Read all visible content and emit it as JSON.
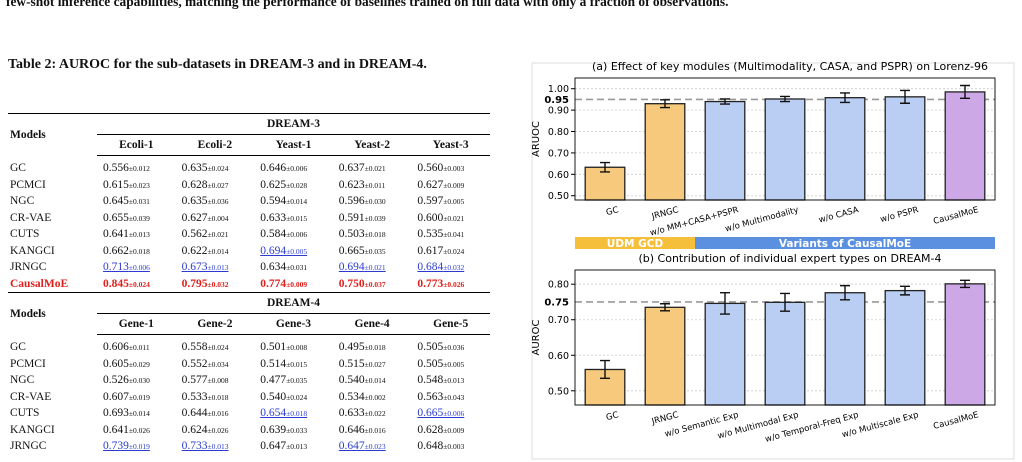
{
  "header_text": "few-shot inference capabilities, matching the performance of baselines trained on full data with only a fraction of observations.",
  "table": {
    "caption": "Table 2: AUROC for the sub-datasets in DREAM-3 and in DREAM-4.",
    "models_label": "Models",
    "sections": [
      {
        "title": "DREAM-3",
        "columns": [
          "Ecoli-1",
          "Ecoli-2",
          "Yeast-1",
          "Yeast-2",
          "Yeast-3"
        ],
        "rows": [
          {
            "model": "GC",
            "cells": [
              {
                "value": "0.556",
                "std": "±0.012"
              },
              {
                "value": "0.635",
                "std": "±0.024"
              },
              {
                "value": "0.646",
                "std": "±0.006"
              },
              {
                "value": "0.637",
                "std": "±0.021"
              },
              {
                "value": "0.560",
                "std": "±0.003"
              }
            ]
          },
          {
            "model": "PCMCI",
            "cells": [
              {
                "value": "0.615",
                "std": "±0.023"
              },
              {
                "value": "0.628",
                "std": "±0.027"
              },
              {
                "value": "0.625",
                "std": "±0.028"
              },
              {
                "value": "0.623",
                "std": "±0.011"
              },
              {
                "value": "0.627",
                "std": "±0.009"
              }
            ]
          },
          {
            "model": "NGC",
            "cells": [
              {
                "value": "0.645",
                "std": "±0.031"
              },
              {
                "value": "0.635",
                "std": "±0.036"
              },
              {
                "value": "0.594",
                "std": "±0.014"
              },
              {
                "value": "0.596",
                "std": "±0.030"
              },
              {
                "value": "0.597",
                "std": "±0.005"
              }
            ]
          },
          {
            "model": "CR-VAE",
            "cells": [
              {
                "value": "0.655",
                "std": "±0.039"
              },
              {
                "value": "0.627",
                "std": "±0.004"
              },
              {
                "value": "0.633",
                "std": "±0.015"
              },
              {
                "value": "0.591",
                "std": "±0.039"
              },
              {
                "value": "0.600",
                "std": "±0.021"
              }
            ]
          },
          {
            "model": "CUTS",
            "cells": [
              {
                "value": "0.641",
                "std": "±0.013"
              },
              {
                "value": "0.562",
                "std": "±0.021"
              },
              {
                "value": "0.584",
                "std": "±0.006"
              },
              {
                "value": "0.503",
                "std": "±0.018"
              },
              {
                "value": "0.535",
                "std": "±0.041"
              }
            ]
          },
          {
            "model": "KANGCI",
            "cells": [
              {
                "value": "0.662",
                "std": "±0.018"
              },
              {
                "value": "0.622",
                "std": "±0.014"
              },
              {
                "value": "0.694",
                "std": "±0.005",
                "color": "#2b3bd0",
                "underline": true
              },
              {
                "value": "0.665",
                "std": "±0.035"
              },
              {
                "value": "0.617",
                "std": "±0.024"
              }
            ]
          },
          {
            "model": "JRNGC",
            "cells": [
              {
                "value": "0.713",
                "std": "±0.006",
                "color": "#2b3bd0",
                "underline": true
              },
              {
                "value": "0.673",
                "std": "±0.013",
                "color": "#2b3bd0",
                "underline": true
              },
              {
                "value": "0.634",
                "std": "±0.031"
              },
              {
                "value": "0.694",
                "std": "±0.021",
                "color": "#2b3bd0",
                "underline": true
              },
              {
                "value": "0.684",
                "std": "±0.032",
                "color": "#2b3bd0",
                "underline": true
              }
            ]
          },
          {
            "model": "CausalMoE",
            "color": "#e0201c",
            "bold": true,
            "cells": [
              {
                "value": "0.845",
                "std": "±0.024",
                "color": "#e0201c",
                "bold": true
              },
              {
                "value": "0.795",
                "std": "±0.032",
                "color": "#e0201c",
                "bold": true
              },
              {
                "value": "0.774",
                "std": "±0.009",
                "color": "#e0201c",
                "bold": true
              },
              {
                "value": "0.750",
                "std": "±0.037",
                "color": "#e0201c",
                "bold": true
              },
              {
                "value": "0.773",
                "std": "±0.026",
                "color": "#e0201c",
                "bold": true
              }
            ]
          }
        ]
      },
      {
        "title": "DREAM-4",
        "columns": [
          "Gene-1",
          "Gene-2",
          "Gene-3",
          "Gene-4",
          "Gene-5"
        ],
        "rows": [
          {
            "model": "GC",
            "cells": [
              {
                "value": "0.606",
                "std": "±0.011"
              },
              {
                "value": "0.558",
                "std": "±0.024"
              },
              {
                "value": "0.501",
                "std": "±0.008"
              },
              {
                "value": "0.495",
                "std": "±0.018"
              },
              {
                "value": "0.505",
                "std": "±0.036"
              }
            ]
          },
          {
            "model": "PCMCI",
            "cells": [
              {
                "value": "0.605",
                "std": "±0.029"
              },
              {
                "value": "0.552",
                "std": "±0.034"
              },
              {
                "value": "0.514",
                "std": "±0.015"
              },
              {
                "value": "0.515",
                "std": "±0.027"
              },
              {
                "value": "0.505",
                "std": "±0.005"
              }
            ]
          },
          {
            "model": "NGC",
            "cells": [
              {
                "value": "0.526",
                "std": "±0.030"
              },
              {
                "value": "0.577",
                "std": "±0.008"
              },
              {
                "value": "0.477",
                "std": "±0.035"
              },
              {
                "value": "0.540",
                "std": "±0.014"
              },
              {
                "value": "0.548",
                "std": "±0.013"
              }
            ]
          },
          {
            "model": "CR-VAE",
            "cells": [
              {
                "value": "0.607",
                "std": "±0.019"
              },
              {
                "value": "0.533",
                "std": "±0.018"
              },
              {
                "value": "0.540",
                "std": "±0.024"
              },
              {
                "value": "0.534",
                "std": "±0.002"
              },
              {
                "value": "0.563",
                "std": "±0.043"
              }
            ]
          },
          {
            "model": "CUTS",
            "cells": [
              {
                "value": "0.693",
                "std": "±0.014"
              },
              {
                "value": "0.644",
                "std": "±0.016"
              },
              {
                "value": "0.654",
                "std": "±0.018",
                "color": "#2b3bd0",
                "underline": true
              },
              {
                "value": "0.633",
                "std": "±0.022"
              },
              {
                "value": "0.665",
                "std": "±0.006",
                "color": "#2b3bd0",
                "underline": true
              }
            ]
          },
          {
            "model": "KANGCI",
            "cells": [
              {
                "value": "0.641",
                "std": "±0.026"
              },
              {
                "value": "0.624",
                "std": "±0.026"
              },
              {
                "value": "0.639",
                "std": "±0.033"
              },
              {
                "value": "0.646",
                "std": "±0.016"
              },
              {
                "value": "0.628",
                "std": "±0.009"
              }
            ]
          },
          {
            "model": "JRNGC",
            "cells": [
              {
                "value": "0.739",
                "std": "±0.019",
                "color": "#2b3bd0",
                "underline": true
              },
              {
                "value": "0.733",
                "std": "±0.013",
                "color": "#2b3bd0",
                "underline": true
              },
              {
                "value": "0.647",
                "std": "±0.013"
              },
              {
                "value": "0.647",
                "std": "±0.023",
                "color": "#2b3bd0",
                "underline": true
              },
              {
                "value": "0.648",
                "std": "±0.003"
              }
            ]
          }
        ]
      }
    ]
  },
  "chart_data": [
    {
      "type": "bar",
      "title": "(a) Effect of key modules (Multimodality, CASA, and PSPR) on Lorenz-96",
      "y_label": "ARUOC",
      "categories": [
        "GC",
        "JRNGC",
        "w/o MM+CASA+PSPR",
        "w/o Multimodality",
        "w/o CASA",
        "w/o PSPR",
        "CausalMoE"
      ],
      "values": [
        0.633,
        0.93,
        0.94,
        0.952,
        0.958,
        0.962,
        0.985
      ],
      "errors": [
        0.022,
        0.018,
        0.012,
        0.012,
        0.022,
        0.03,
        0.03
      ],
      "colors": [
        "#f6c97d",
        "#f6c97d",
        "#b9cef2",
        "#b9cef2",
        "#b9cef2",
        "#b9cef2",
        "#cda8e6"
      ],
      "ylim": [
        0.48,
        1.05
      ],
      "yticks": [
        {
          "value": 0.5,
          "label": "0.50"
        },
        {
          "value": 0.6,
          "label": "0.60"
        },
        {
          "value": 0.7,
          "label": "0.70"
        },
        {
          "value": 0.8,
          "label": "0.80"
        },
        {
          "value": 0.9,
          "label": "0.90"
        },
        {
          "value": 1.0,
          "label": "1.00"
        }
      ],
      "ref_line": {
        "value": 0.95,
        "label": "0.95"
      },
      "grid": true,
      "groups": [
        {
          "label": "UDM GCD",
          "span": [
            0,
            1
          ],
          "color": "#f5bf3c"
        },
        {
          "label": "Variants of CausalMoE",
          "span": [
            2,
            6
          ],
          "color": "#5b8fe0"
        }
      ]
    },
    {
      "type": "bar",
      "title": "(b) Contribution of individual expert types on DREAM-4",
      "y_label": "AUROC",
      "categories": [
        "GC",
        "JRNGC",
        "w/o Semantic Exp",
        "w/o Multimodal Exp",
        "w/o Temporal-Freq Exp",
        "w/o Multiscale Exp",
        "CausalMoE"
      ],
      "values": [
        0.56,
        0.735,
        0.746,
        0.749,
        0.776,
        0.782,
        0.801
      ],
      "errors": [
        0.025,
        0.01,
        0.03,
        0.025,
        0.02,
        0.012,
        0.01
      ],
      "colors": [
        "#f6c97d",
        "#f6c97d",
        "#b9cef2",
        "#b9cef2",
        "#b9cef2",
        "#b9cef2",
        "#cda8e6"
      ],
      "ylim": [
        0.46,
        0.84
      ],
      "yticks": [
        {
          "value": 0.5,
          "label": "0.50"
        },
        {
          "value": 0.6,
          "label": "0.60"
        },
        {
          "value": 0.7,
          "label": "0.70"
        },
        {
          "value": 0.8,
          "label": "0.80"
        }
      ],
      "ref_line": {
        "value": 0.75,
        "label": "0.75"
      },
      "grid": true
    }
  ]
}
